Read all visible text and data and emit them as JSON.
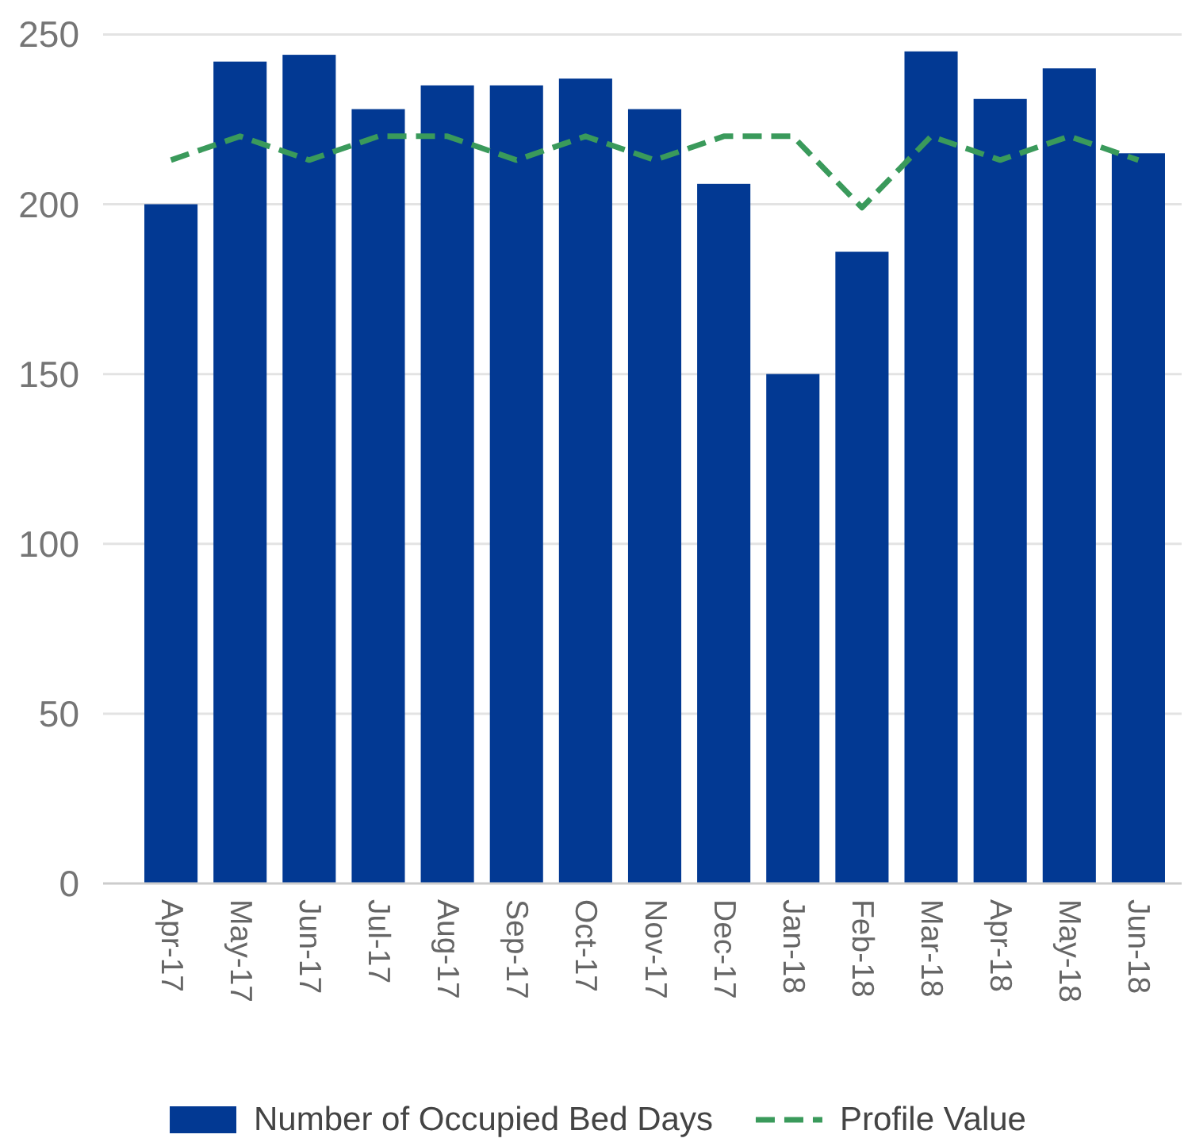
{
  "chart_data": {
    "type": "bar",
    "categories": [
      "Apr-17",
      "May-17",
      "Jun-17",
      "Jul-17",
      "Aug-17",
      "Sep-17",
      "Oct-17",
      "Nov-17",
      "Dec-17",
      "Jan-18",
      "Feb-18",
      "Mar-18",
      "Apr-18",
      "May-18",
      "Jun-18"
    ],
    "series": [
      {
        "name": "Number of Occupied Bed Days",
        "color": "#023993",
        "values": [
          200,
          242,
          244,
          228,
          235,
          235,
          237,
          228,
          206,
          150,
          186,
          245,
          231,
          240,
          215
        ]
      },
      {
        "name": "Profile Value",
        "type": "line",
        "color": "#3a9a5b",
        "values": [
          213,
          220,
          213,
          220,
          220,
          213,
          220,
          213,
          220,
          220,
          199,
          220,
          213,
          220,
          213
        ]
      }
    ],
    "ylim": [
      0,
      250
    ],
    "yticks": [
      0,
      50,
      100,
      150,
      200,
      250
    ],
    "grid": "y",
    "legend": "bottom",
    "line_style": "dashed"
  }
}
